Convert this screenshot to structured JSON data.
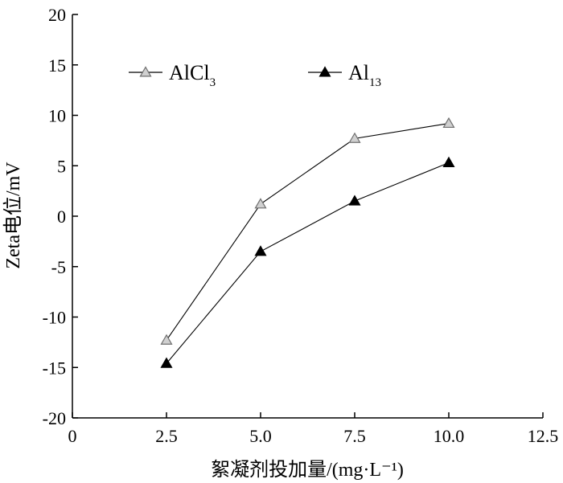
{
  "chart_data": {
    "type": "line",
    "xlabel": "絮凝剂投加量/(mg·L⁻¹)",
    "ylabel": "Zeta电位/mV",
    "xlim": [
      0,
      12.5
    ],
    "ylim": [
      -20,
      20
    ],
    "xticks": [
      "0",
      "2.5",
      "5.0",
      "7.5",
      "10.0",
      "12.5"
    ],
    "yticks": [
      "-20",
      "-15",
      "-10",
      "-5",
      "0",
      "5",
      "10",
      "15",
      "20"
    ],
    "grid": false,
    "legend_position": "top",
    "series": [
      {
        "name": "AlCl3",
        "name_base": "AlCl",
        "name_sub": "3",
        "marker": "open-triangle",
        "x": [
          2.5,
          5.0,
          7.5,
          10.0
        ],
        "y": [
          -12.3,
          1.2,
          7.7,
          9.2
        ]
      },
      {
        "name": "Al13",
        "name_base": "Al",
        "name_sub": "13",
        "marker": "filled-triangle",
        "x": [
          2.5,
          5.0,
          7.5,
          10.0
        ],
        "y": [
          -14.6,
          -3.5,
          1.5,
          5.3
        ]
      }
    ]
  }
}
